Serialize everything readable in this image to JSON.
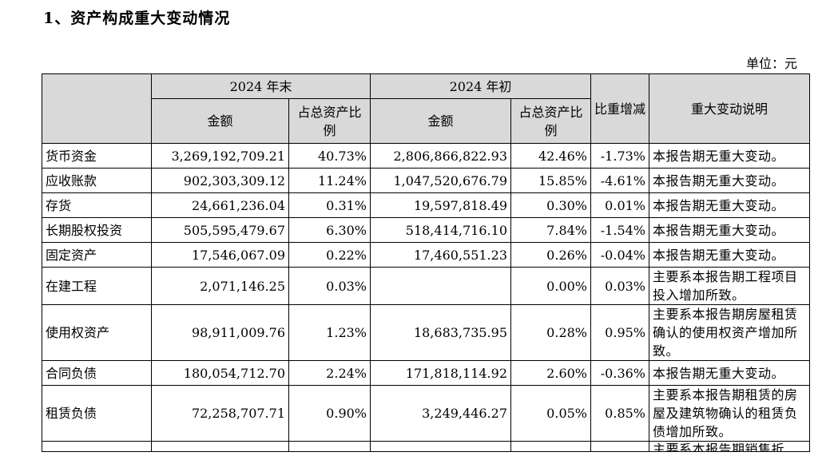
{
  "section_title": "1、资产构成重大变动情况",
  "unit_label": "单位：元",
  "header": {
    "period_end": "2024 年末",
    "period_begin": "2024 年初",
    "amount": "金额",
    "ratio_end": "占总资产比例",
    "ratio_begin": "占总资产比例",
    "change": "比重增减",
    "explanation": "重大变动说明"
  },
  "rows": [
    {
      "item": "货币资金",
      "end_amount": "3,269,192,709.21",
      "end_ratio": "40.73%",
      "begin_amount": "2,806,866,822.93",
      "begin_ratio": "42.46%",
      "change": "-1.73%",
      "note": "本报告期无重大变动。"
    },
    {
      "item": "应收账款",
      "end_amount": "902,303,309.12",
      "end_ratio": "11.24%",
      "begin_amount": "1,047,520,676.79",
      "begin_ratio": "15.85%",
      "change": "-4.61%",
      "note": "本报告期无重大变动。"
    },
    {
      "item": "存货",
      "end_amount": "24,661,236.04",
      "end_ratio": "0.31%",
      "begin_amount": "19,597,818.49",
      "begin_ratio": "0.30%",
      "change": "0.01%",
      "note": "本报告期无重大变动。"
    },
    {
      "item": "长期股权投资",
      "end_amount": "505,595,479.67",
      "end_ratio": "6.30%",
      "begin_amount": "518,414,716.10",
      "begin_ratio": "7.84%",
      "change": "-1.54%",
      "note": "本报告期无重大变动。"
    },
    {
      "item": "固定资产",
      "end_amount": "17,546,067.09",
      "end_ratio": "0.22%",
      "begin_amount": "17,460,551.23",
      "begin_ratio": "0.26%",
      "change": "-0.04%",
      "note": "本报告期无重大变动。"
    },
    {
      "item": "在建工程",
      "end_amount": "2,071,146.25",
      "end_ratio": "0.03%",
      "begin_amount": "",
      "begin_ratio": "0.00%",
      "change": "0.03%",
      "note": "主要系本报告期工程项目投入增加所致。"
    },
    {
      "item": "使用权资产",
      "end_amount": "98,911,009.76",
      "end_ratio": "1.23%",
      "begin_amount": "18,683,735.95",
      "begin_ratio": "0.28%",
      "change": "0.95%",
      "note": "主要系本报告期房屋租赁确认的使用权资产增加所致。"
    },
    {
      "item": "合同负债",
      "end_amount": "180,054,712.70",
      "end_ratio": "2.24%",
      "begin_amount": "171,818,114.92",
      "begin_ratio": "2.60%",
      "change": "-0.36%",
      "note": "本报告期无重大变动。"
    },
    {
      "item": "租赁负债",
      "end_amount": "72,258,707.71",
      "end_ratio": "0.90%",
      "begin_amount": "3,249,446.27",
      "begin_ratio": "0.05%",
      "change": "0.85%",
      "note": "主要系本报告期租赁的房屋及建筑物确认的租赁负债增加所致。"
    }
  ],
  "partial_row_note": "主要系本报告期销售折"
}
